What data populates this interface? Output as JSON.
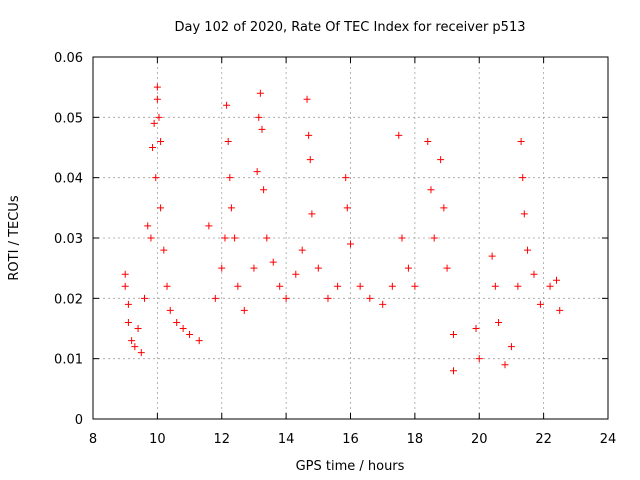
{
  "chart_data": {
    "type": "scatter",
    "title": "Day 102 of 2020, Rate Of TEC Index for receiver p513",
    "xlabel": "GPS time / hours",
    "ylabel": "ROTI / TECUs",
    "xlim": [
      8,
      24
    ],
    "ylim": [
      0,
      0.06
    ],
    "x_ticks": [
      "8",
      "10",
      "12",
      "14",
      "16",
      "18",
      "20",
      "22",
      "24"
    ],
    "y_ticks": [
      "0",
      "0.01",
      "0.02",
      "0.03",
      "0.04",
      "0.05",
      "0.06"
    ],
    "grid": true,
    "marker": "plus",
    "series": [
      {
        "name": "ROTI",
        "color": "#ff0000",
        "points": [
          [
            9.0,
            0.024
          ],
          [
            9.0,
            0.022
          ],
          [
            9.1,
            0.019
          ],
          [
            9.1,
            0.016
          ],
          [
            9.2,
            0.013
          ],
          [
            9.3,
            0.012
          ],
          [
            9.4,
            0.015
          ],
          [
            9.5,
            0.011
          ],
          [
            9.6,
            0.02
          ],
          [
            9.7,
            0.032
          ],
          [
            9.8,
            0.03
          ],
          [
            9.85,
            0.045
          ],
          [
            9.9,
            0.049
          ],
          [
            9.95,
            0.04
          ],
          [
            10.0,
            0.055
          ],
          [
            10.0,
            0.053
          ],
          [
            10.05,
            0.05
          ],
          [
            10.1,
            0.046
          ],
          [
            10.1,
            0.035
          ],
          [
            10.2,
            0.028
          ],
          [
            10.3,
            0.022
          ],
          [
            10.4,
            0.018
          ],
          [
            10.6,
            0.016
          ],
          [
            10.8,
            0.015
          ],
          [
            11.0,
            0.014
          ],
          [
            11.3,
            0.013
          ],
          [
            11.6,
            0.032
          ],
          [
            11.8,
            0.02
          ],
          [
            12.0,
            0.025
          ],
          [
            12.1,
            0.03
          ],
          [
            12.15,
            0.052
          ],
          [
            12.2,
            0.046
          ],
          [
            12.25,
            0.04
          ],
          [
            12.3,
            0.035
          ],
          [
            12.4,
            0.03
          ],
          [
            12.5,
            0.022
          ],
          [
            12.7,
            0.018
          ],
          [
            13.0,
            0.025
          ],
          [
            13.1,
            0.041
          ],
          [
            13.15,
            0.05
          ],
          [
            13.2,
            0.054
          ],
          [
            13.25,
            0.048
          ],
          [
            13.3,
            0.038
          ],
          [
            13.4,
            0.03
          ],
          [
            13.6,
            0.026
          ],
          [
            13.8,
            0.022
          ],
          [
            14.0,
            0.02
          ],
          [
            14.3,
            0.024
          ],
          [
            14.5,
            0.028
          ],
          [
            14.65,
            0.053
          ],
          [
            14.7,
            0.047
          ],
          [
            14.75,
            0.043
          ],
          [
            14.8,
            0.034
          ],
          [
            15.0,
            0.025
          ],
          [
            15.3,
            0.02
          ],
          [
            15.6,
            0.022
          ],
          [
            15.85,
            0.04
          ],
          [
            15.9,
            0.035
          ],
          [
            16.0,
            0.029
          ],
          [
            16.3,
            0.022
          ],
          [
            16.6,
            0.02
          ],
          [
            17.0,
            0.019
          ],
          [
            17.3,
            0.022
          ],
          [
            17.5,
            0.047
          ],
          [
            17.6,
            0.03
          ],
          [
            17.8,
            0.025
          ],
          [
            18.0,
            0.022
          ],
          [
            18.4,
            0.046
          ],
          [
            18.5,
            0.038
          ],
          [
            18.6,
            0.03
          ],
          [
            18.8,
            0.043
          ],
          [
            18.9,
            0.035
          ],
          [
            19.0,
            0.025
          ],
          [
            19.2,
            0.014
          ],
          [
            19.2,
            0.008
          ],
          [
            19.9,
            0.015
          ],
          [
            20.0,
            0.01
          ],
          [
            20.4,
            0.027
          ],
          [
            20.5,
            0.022
          ],
          [
            20.6,
            0.016
          ],
          [
            20.8,
            0.009
          ],
          [
            21.0,
            0.012
          ],
          [
            21.2,
            0.022
          ],
          [
            21.3,
            0.046
          ],
          [
            21.35,
            0.04
          ],
          [
            21.4,
            0.034
          ],
          [
            21.5,
            0.028
          ],
          [
            21.7,
            0.024
          ],
          [
            21.9,
            0.019
          ],
          [
            22.2,
            0.022
          ],
          [
            22.4,
            0.023
          ],
          [
            22.5,
            0.018
          ]
        ]
      }
    ]
  }
}
